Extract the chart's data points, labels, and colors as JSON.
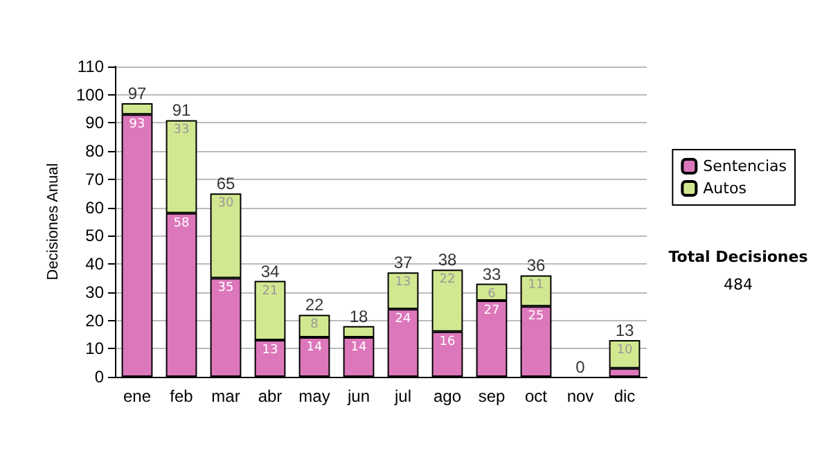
{
  "chart_data": {
    "type": "bar",
    "stacked": true,
    "ylabel": "Decisiones Anual",
    "categories": [
      "ene",
      "feb",
      "mar",
      "abr",
      "may",
      "jun",
      "jul",
      "ago",
      "sep",
      "oct",
      "nov",
      "dic"
    ],
    "series": [
      {
        "name": "Sentencias",
        "color": "#dd77bb",
        "values": [
          93,
          58,
          35,
          13,
          14,
          14,
          24,
          16,
          27,
          25,
          0,
          3
        ],
        "value_labels": [
          "93",
          "58",
          "35",
          "13",
          "14",
          "14",
          "24",
          "16",
          "27",
          "25",
          null,
          null
        ]
      },
      {
        "name": "Autos",
        "color": "#d2e890",
        "values": [
          4,
          33,
          30,
          21,
          8,
          4,
          13,
          22,
          6,
          11,
          0,
          10
        ],
        "value_labels": [
          null,
          "33",
          "30",
          "21",
          "8",
          null,
          "13",
          "22",
          "6",
          "11",
          null,
          "10"
        ]
      }
    ],
    "totals": [
      "97",
      "91",
      "65",
      "34",
      "22",
      "18",
      "37",
      "38",
      "33",
      "36",
      "0",
      "13"
    ],
    "ylim": [
      0,
      110
    ],
    "yticks": [
      0,
      10,
      20,
      30,
      40,
      50,
      60,
      70,
      80,
      90,
      100,
      110
    ],
    "grid": "y",
    "legend": "right",
    "annotations": [
      "Total Decisiones",
      "484"
    ]
  }
}
